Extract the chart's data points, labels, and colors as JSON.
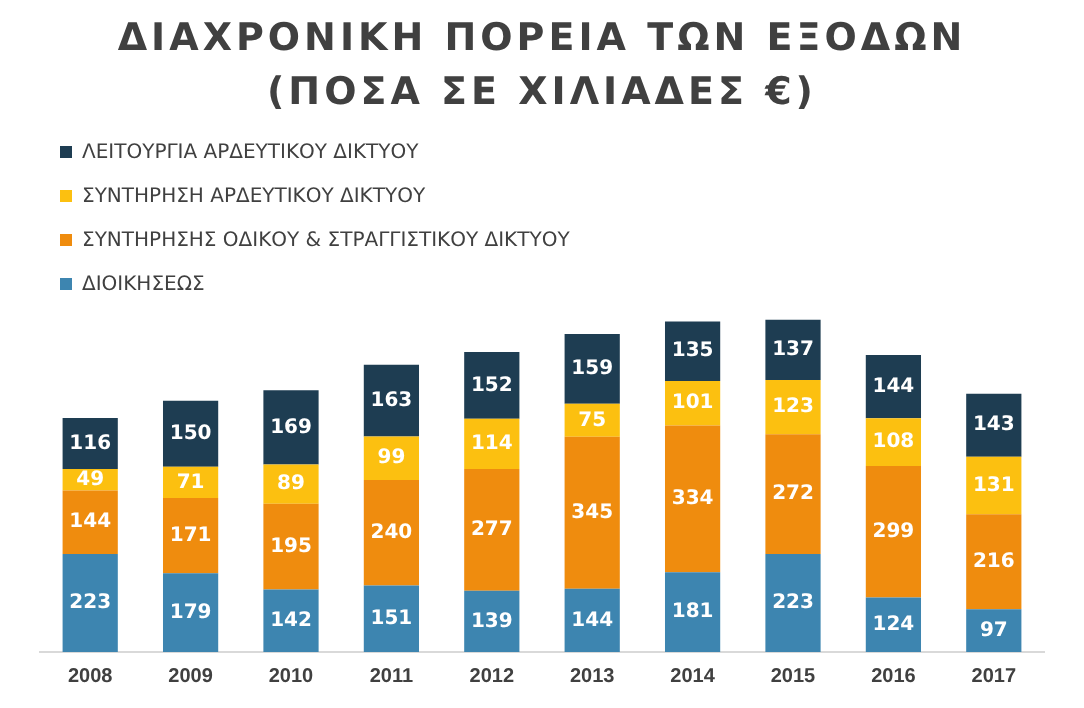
{
  "chart_data": {
    "type": "bar",
    "title": "ΔΙΑΧΡΟΝΙΚΗ ΠΟΡΕΙΑ ΤΩΝ ΕΞΟΔΩΝ\n(ΠΟΣΑ ΣΕ ΧΙΛΙΑΔΕΣ €)",
    "categories": [
      "2008",
      "2009",
      "2010",
      "2011",
      "2012",
      "2013",
      "2014",
      "2015",
      "2016",
      "2017"
    ],
    "stacked": true,
    "data_labels": true,
    "legend": "top left",
    "grid": false,
    "series": [
      {
        "name": "ΔΙΟΙΚΗΣΕΩΣ",
        "color": "#3d85b0",
        "values": [
          223,
          179,
          142,
          151,
          139,
          144,
          181,
          223,
          124,
          97
        ]
      },
      {
        "name": "ΣΥΝΤΗΡΗΣΗΣ ΟΔΙΚΟΥ & ΣΤΡΑΓΓΙΣΤΙΚΟΥ ΔΙΚΤΥΟΥ",
        "color": "#ef8c0e",
        "values": [
          144,
          171,
          195,
          240,
          277,
          345,
          334,
          272,
          299,
          216
        ]
      },
      {
        "name": "ΣΥΝΤΗΡΗΣΗ ΑΡΔΕΥΤΙΚΟΥ ΔΙΚΤΥΟΥ",
        "color": "#fcc010",
        "values": [
          49,
          71,
          89,
          99,
          114,
          75,
          101,
          123,
          108,
          131
        ]
      },
      {
        "name": "ΛΕΙΤΟΥΡΓΙΑ ΑΡΔΕΥΤΙΚΟΥ ΔΙΚΤΥΟΥ",
        "color": "#1e3d52",
        "values": [
          116,
          150,
          169,
          163,
          152,
          159,
          135,
          137,
          144,
          143
        ]
      }
    ]
  }
}
